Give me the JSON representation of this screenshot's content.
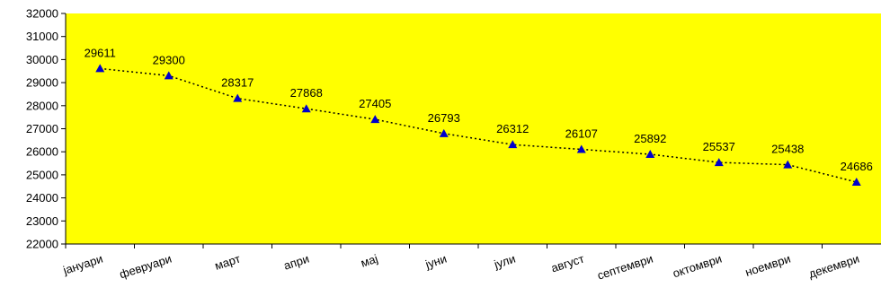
{
  "chart_data": {
    "type": "line",
    "categories": [
      "јануари",
      "февруари",
      "март",
      "апри",
      "мај",
      "јуни",
      "јули",
      "август",
      "септември",
      "октомври",
      "ноември",
      "декември"
    ],
    "series": [
      {
        "values": [
          29611,
          29300,
          28317,
          27868,
          27405,
          26793,
          26312,
          26107,
          25892,
          25537,
          25438,
          24686
        ]
      }
    ],
    "ylim": [
      22000,
      32000
    ],
    "ytick_step": 1000,
    "grid": false,
    "legend": "none",
    "data_labels": true,
    "colors": {
      "plot_background": "#ffff00",
      "marker": "#0000cc",
      "line": "#000000",
      "axis": "#000000"
    },
    "line_style": "dotted",
    "marker": "triangle"
  }
}
